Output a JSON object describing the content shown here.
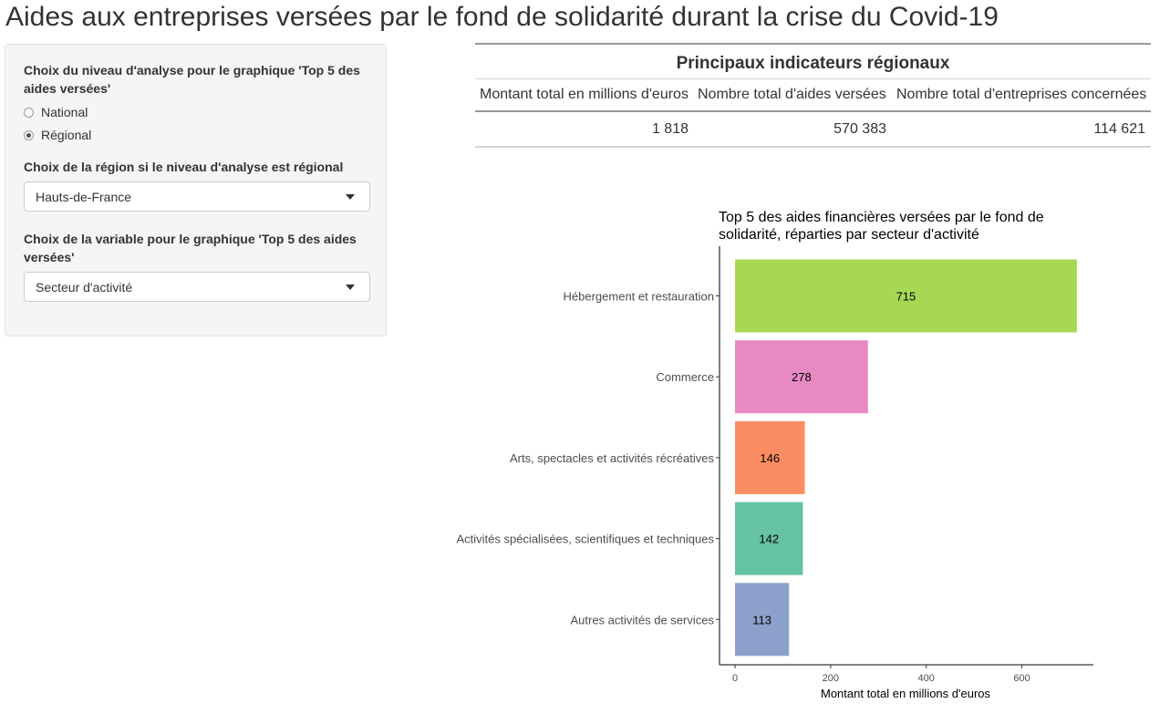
{
  "page": {
    "title": "Aides aux entreprises versées par le fond de solidarité durant la crise du Covid-19"
  },
  "sidebar": {
    "level_label_line1": "Choix du niveau d'analyse pour le graphique 'Top 5 des",
    "level_label_line2": "aides versées'",
    "level_options": [
      {
        "label": "National",
        "checked": false
      },
      {
        "label": "Régional",
        "checked": true
      }
    ],
    "region_label": "Choix de la région si le niveau d'analyse est régional",
    "region_value": "Hauts-de-France",
    "variable_label_line1": "Choix de la variable pour le graphique 'Top 5 des aides",
    "variable_label_line2": "versées'",
    "variable_value": "Secteur d'activité"
  },
  "kpi_table": {
    "title": "Principaux indicateurs régionaux",
    "headers": [
      "Montant total en millions d'euros",
      "Nombre total d'aides versées",
      "Nombre total d'entreprises concernées"
    ],
    "values": [
      "1 818",
      "570 383",
      "114 621"
    ]
  },
  "chart_data": {
    "type": "bar",
    "orientation": "horizontal",
    "title_line1": "Top 5 des aides financières versées par le fond de",
    "title_line2": "solidarité, réparties par secteur d'activité",
    "categories": [
      "Hébergement et restauration",
      "Commerce",
      "Arts, spectacles et activités récréatives",
      "Activités spécialisées, scientifiques et techniques",
      "Autres activités de services"
    ],
    "values": [
      715,
      278,
      146,
      142,
      113
    ],
    "data_labels": [
      "715",
      "278",
      "146",
      "142",
      "113"
    ],
    "colors": [
      "#a6d854",
      "#e78ac3",
      "#fc8d62",
      "#66c2a5",
      "#8da0cb"
    ],
    "xlabel": "Montant total en millions d'euros",
    "ylabel": "",
    "xlim": [
      0,
      750
    ],
    "xticks": [
      0,
      200,
      400,
      600
    ],
    "grid": false
  }
}
